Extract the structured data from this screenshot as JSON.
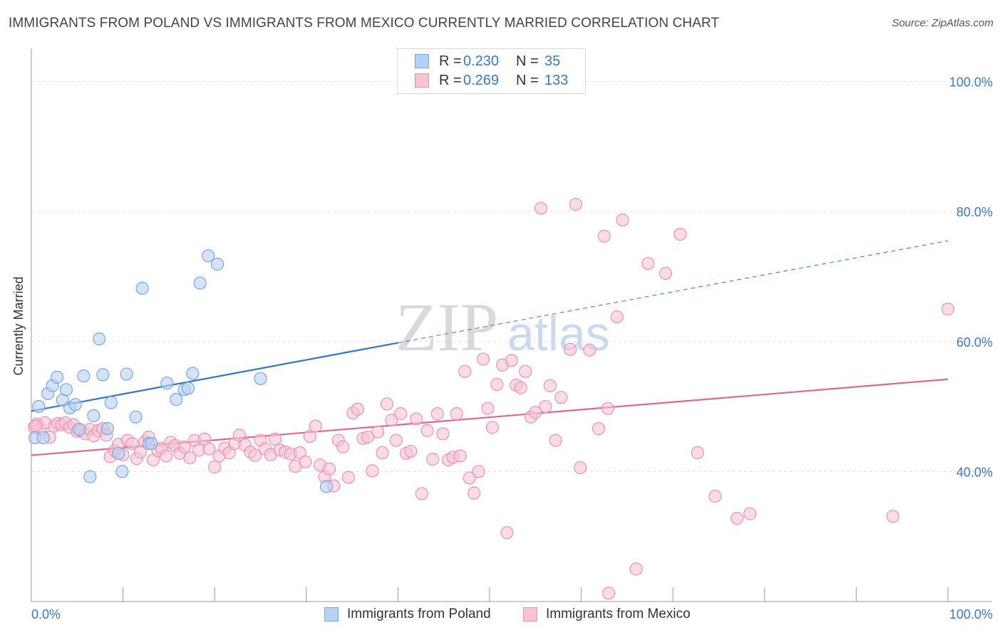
{
  "header": {
    "title": "IMMIGRANTS FROM POLAND VS IMMIGRANTS FROM MEXICO CURRENTLY MARRIED CORRELATION CHART",
    "source": "Source: ZipAtlas.com"
  },
  "watermark": {
    "part1": "ZIP",
    "part2": "atlas"
  },
  "legend_top": {
    "rows": [
      {
        "r_label": "R =",
        "r_value": "0.230",
        "n_label": "N =",
        "n_value": "35"
      },
      {
        "r_label": "R =",
        "r_value": "0.269",
        "n_label": "N =",
        "n_value": "133"
      }
    ]
  },
  "legend_bottom": {
    "items": [
      {
        "label": "Immigrants from Poland"
      },
      {
        "label": "Immigrants from Mexico"
      }
    ]
  },
  "colors": {
    "poland_fill": "#b7d1f2",
    "poland_stroke": "#7aa6dc",
    "poland_line": "#2f74d0",
    "mexico_fill": "#f8c3d3",
    "mexico_stroke": "#eb93b0",
    "mexico_line": "#e0668f",
    "tick_label": "#3a78c9",
    "grid": "#e2e2e2"
  },
  "chart_data": {
    "type": "scatter",
    "title": "IMMIGRANTS FROM POLAND VS IMMIGRANTS FROM MEXICO CURRENTLY MARRIED CORRELATION CHART",
    "xlabel": "",
    "ylabel": "Currently Married",
    "xlim": [
      0,
      100
    ],
    "ylim": [
      20,
      104
    ],
    "x_tick_labels": [
      "0.0%",
      "100.0%"
    ],
    "y_ticks": [
      40,
      60,
      80,
      100
    ],
    "y_tick_labels": [
      "40.0%",
      "60.0%",
      "80.0%",
      "100.0%"
    ],
    "grid": true,
    "legend_position": "top-center",
    "series": [
      {
        "name": "Immigrants from Poland",
        "r": 0.23,
        "n": 35,
        "trend": {
          "x0": 0,
          "y0": 49.3,
          "x1": 40,
          "y1": 59.8,
          "dashed_to_x": 100,
          "dashed_to_y": 75.5
        },
        "points": [
          [
            0.4,
            45.2
          ],
          [
            0.8,
            50.0
          ],
          [
            1.3,
            45.2
          ],
          [
            1.8,
            52.0
          ],
          [
            2.3,
            53.2
          ],
          [
            2.8,
            54.5
          ],
          [
            3.4,
            51.0
          ],
          [
            3.8,
            52.6
          ],
          [
            4.2,
            49.8
          ],
          [
            4.8,
            50.3
          ],
          [
            5.2,
            46.5
          ],
          [
            5.7,
            54.7
          ],
          [
            6.4,
            39.2
          ],
          [
            6.8,
            48.6
          ],
          [
            7.4,
            60.4
          ],
          [
            7.8,
            54.9
          ],
          [
            8.3,
            46.6
          ],
          [
            8.7,
            50.6
          ],
          [
            9.5,
            42.8
          ],
          [
            9.9,
            40.0
          ],
          [
            10.4,
            55.0
          ],
          [
            11.4,
            48.4
          ],
          [
            12.1,
            68.2
          ],
          [
            12.8,
            44.3
          ],
          [
            13.1,
            44.3
          ],
          [
            14.8,
            53.6
          ],
          [
            15.8,
            51.1
          ],
          [
            16.7,
            52.6
          ],
          [
            17.1,
            52.8
          ],
          [
            17.6,
            55.1
          ],
          [
            18.4,
            69.0
          ],
          [
            19.3,
            73.2
          ],
          [
            20.3,
            71.9
          ],
          [
            25.0,
            54.3
          ],
          [
            32.2,
            37.7
          ]
        ]
      },
      {
        "name": "Immigrants from Mexico",
        "r": 0.269,
        "n": 133,
        "trend": {
          "x0": 0,
          "y0": 42.5,
          "x1": 100,
          "y1": 54.2
        },
        "points": [
          [
            0.3,
            46.8
          ],
          [
            0.6,
            47.3
          ],
          [
            1.0,
            46.5
          ],
          [
            1.5,
            47.5
          ],
          [
            2.0,
            45.3
          ],
          [
            2.5,
            47.0
          ],
          [
            2.9,
            47.4
          ],
          [
            3.3,
            47.2
          ],
          [
            3.7,
            47.5
          ],
          [
            4.2,
            46.8
          ],
          [
            4.6,
            47.2
          ],
          [
            5.0,
            46.2
          ],
          [
            5.4,
            46.3
          ],
          [
            5.9,
            45.8
          ],
          [
            6.4,
            46.5
          ],
          [
            6.8,
            45.5
          ],
          [
            7.3,
            46.3
          ],
          [
            7.8,
            46.6
          ],
          [
            8.2,
            45.6
          ],
          [
            8.6,
            42.3
          ],
          [
            9.1,
            43.2
          ],
          [
            9.5,
            44.2
          ],
          [
            10.0,
            42.6
          ],
          [
            10.5,
            44.8
          ],
          [
            11.0,
            44.3
          ],
          [
            11.5,
            42.0
          ],
          [
            11.9,
            43.0
          ],
          [
            12.4,
            44.6
          ],
          [
            12.8,
            45.3
          ],
          [
            13.3,
            41.8
          ],
          [
            13.8,
            43.2
          ],
          [
            14.2,
            43.6
          ],
          [
            14.7,
            42.4
          ],
          [
            15.2,
            44.5
          ],
          [
            15.7,
            44.0
          ],
          [
            16.2,
            42.8
          ],
          [
            16.7,
            43.8
          ],
          [
            17.3,
            42.1
          ],
          [
            17.8,
            44.8
          ],
          [
            18.3,
            43.3
          ],
          [
            18.9,
            45.0
          ],
          [
            19.4,
            43.5
          ],
          [
            20.0,
            40.7
          ],
          [
            20.5,
            42.4
          ],
          [
            21.1,
            43.6
          ],
          [
            21.6,
            42.9
          ],
          [
            22.2,
            44.3
          ],
          [
            22.7,
            45.6
          ],
          [
            23.3,
            44.1
          ],
          [
            23.9,
            43.0
          ],
          [
            24.4,
            42.5
          ],
          [
            25.0,
            44.8
          ],
          [
            25.5,
            43.5
          ],
          [
            26.1,
            42.6
          ],
          [
            26.6,
            45.0
          ],
          [
            27.1,
            43.3
          ],
          [
            27.7,
            43.0
          ],
          [
            28.3,
            42.7
          ],
          [
            28.8,
            40.8
          ],
          [
            29.3,
            42.9
          ],
          [
            29.9,
            41.5
          ],
          [
            30.4,
            45.4
          ],
          [
            31.0,
            47.0
          ],
          [
            31.5,
            41.0
          ],
          [
            32.0,
            39.2
          ],
          [
            32.5,
            40.4
          ],
          [
            33.0,
            37.8
          ],
          [
            33.5,
            44.8
          ],
          [
            34.0,
            43.8
          ],
          [
            34.6,
            39.1
          ],
          [
            35.1,
            49.0
          ],
          [
            35.6,
            49.6
          ],
          [
            36.2,
            45.1
          ],
          [
            36.7,
            45.3
          ],
          [
            37.2,
            40.1
          ],
          [
            37.8,
            46.1
          ],
          [
            38.3,
            42.9
          ],
          [
            38.8,
            50.4
          ],
          [
            39.3,
            47.9
          ],
          [
            39.8,
            44.8
          ],
          [
            40.3,
            48.9
          ],
          [
            40.9,
            42.8
          ],
          [
            41.4,
            43.1
          ],
          [
            42.0,
            48.1
          ],
          [
            42.6,
            36.6
          ],
          [
            43.2,
            46.3
          ],
          [
            43.8,
            41.9
          ],
          [
            44.3,
            48.9
          ],
          [
            44.9,
            45.8
          ],
          [
            45.5,
            41.8
          ],
          [
            46.0,
            42.2
          ],
          [
            46.4,
            48.9
          ],
          [
            46.8,
            42.4
          ],
          [
            47.3,
            55.4
          ],
          [
            47.8,
            39.0
          ],
          [
            48.3,
            36.7
          ],
          [
            48.8,
            40.0
          ],
          [
            49.3,
            57.3
          ],
          [
            49.8,
            49.7
          ],
          [
            50.3,
            46.8
          ],
          [
            50.8,
            53.4
          ],
          [
            51.4,
            56.4
          ],
          [
            51.9,
            30.6
          ],
          [
            52.4,
            57.1
          ],
          [
            52.9,
            53.3
          ],
          [
            53.4,
            52.9
          ],
          [
            53.9,
            55.4
          ],
          [
            54.5,
            48.4
          ],
          [
            55.0,
            49.1
          ],
          [
            55.6,
            80.5
          ],
          [
            56.1,
            50.0
          ],
          [
            56.6,
            53.2
          ],
          [
            57.2,
            44.8
          ],
          [
            57.8,
            51.4
          ],
          [
            58.8,
            58.8
          ],
          [
            59.4,
            81.1
          ],
          [
            59.9,
            40.6
          ],
          [
            60.9,
            58.7
          ],
          [
            61.9,
            46.6
          ],
          [
            62.5,
            76.2
          ],
          [
            62.9,
            49.7
          ],
          [
            63.9,
            63.8
          ],
          [
            64.5,
            78.7
          ],
          [
            66.0,
            25.0
          ],
          [
            67.3,
            72.0
          ],
          [
            69.2,
            70.5
          ],
          [
            70.8,
            76.5
          ],
          [
            72.7,
            42.9
          ],
          [
            74.6,
            36.2
          ],
          [
            77.0,
            32.8
          ],
          [
            78.4,
            33.5
          ],
          [
            94.0,
            33.1
          ],
          [
            100.0,
            65.0
          ],
          [
            63.0,
            21.3
          ],
          [
            0.5,
            47.0
          ]
        ]
      }
    ]
  }
}
